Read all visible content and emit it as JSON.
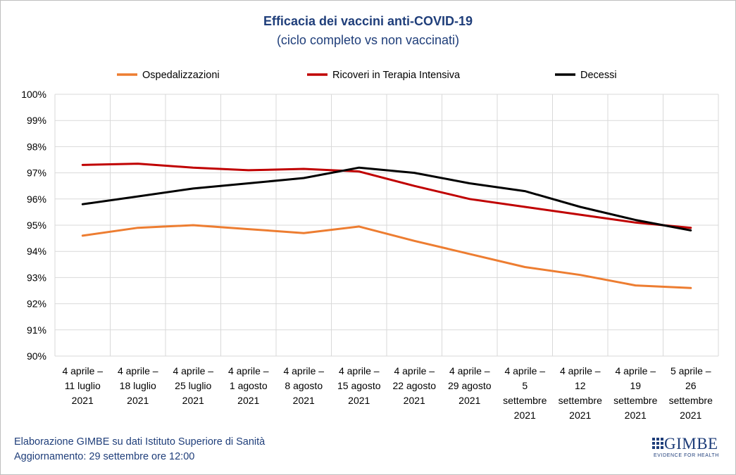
{
  "title": "Efficacia dei vaccini anti-COVID-19",
  "subtitle": "(ciclo completo vs non vaccinati)",
  "footer": {
    "line1": "Elaborazione GIMBE su dati Istituto Superiore di Sanità",
    "line2": "Aggiornamento: 29 settembre ore 12:00"
  },
  "logo": {
    "name": "GIMBE",
    "tagline": "EVIDENCE FOR HEALTH"
  },
  "chart_data": {
    "type": "line",
    "title": "Efficacia dei vaccini anti-COVID-19",
    "subtitle": "(ciclo completo vs non vaccinati)",
    "legend_position": "top",
    "grid": true,
    "ylim": [
      90,
      100
    ],
    "yticks": [
      "100%",
      "99%",
      "98%",
      "97%",
      "96%",
      "95%",
      "94%",
      "93%",
      "92%",
      "91%",
      "90%"
    ],
    "categories": [
      [
        "4 aprile –",
        "11 luglio",
        "2021"
      ],
      [
        "4 aprile –",
        "18 luglio",
        "2021"
      ],
      [
        "4 aprile –",
        "25 luglio",
        "2021"
      ],
      [
        "4 aprile –",
        "1 agosto",
        "2021"
      ],
      [
        "4 aprile –",
        "8 agosto",
        "2021"
      ],
      [
        "4 aprile –",
        "15 agosto",
        "2021"
      ],
      [
        "4 aprile –",
        "22 agosto",
        "2021"
      ],
      [
        "4 aprile –",
        "29 agosto",
        "2021"
      ],
      [
        "4 aprile –",
        "5",
        "settembre",
        "2021"
      ],
      [
        "4 aprile –",
        "12",
        "settembre",
        "2021"
      ],
      [
        "4 aprile –",
        "19",
        "settembre",
        "2021"
      ],
      [
        "5 aprile –",
        "26",
        "settembre",
        "2021"
      ]
    ],
    "series": [
      {
        "name": "Ospedalizzazioni",
        "color": "#ed7d31",
        "values": [
          94.6,
          94.9,
          95.0,
          94.85,
          94.7,
          94.95,
          94.4,
          93.9,
          93.4,
          93.1,
          92.7,
          92.6
        ]
      },
      {
        "name": "Ricoveri in Terapia Intensiva",
        "color": "#c00000",
        "values": [
          97.3,
          97.35,
          97.2,
          97.1,
          97.15,
          97.05,
          96.5,
          96.0,
          95.7,
          95.4,
          95.1,
          94.9
        ]
      },
      {
        "name": "Decessi",
        "color": "#000000",
        "values": [
          95.8,
          96.1,
          96.4,
          96.6,
          96.8,
          97.2,
          97.0,
          96.6,
          96.3,
          95.7,
          95.2,
          94.8
        ]
      }
    ]
  }
}
